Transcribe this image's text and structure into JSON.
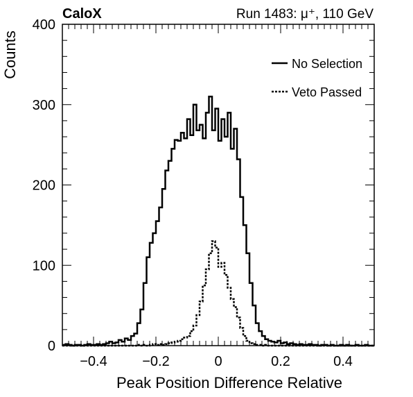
{
  "chart_data": {
    "type": "line",
    "experiment_label": "CaloX",
    "run_label": "Run 1483:   μ⁺, 110 GeV",
    "xlabel": "Peak Position Difference Relative",
    "ylabel": "Counts",
    "xlim": [
      -0.5,
      0.5
    ],
    "ylim": [
      0,
      400
    ],
    "x_ticks": [
      -0.4,
      -0.2,
      0,
      0.2,
      0.4
    ],
    "x_tick_labels": [
      "−0.4",
      "−0.2",
      "0",
      "0.2",
      "0.4"
    ],
    "y_ticks": [
      0,
      100,
      200,
      300,
      400
    ],
    "y_tick_labels": [
      "0",
      "100",
      "200",
      "300",
      "400"
    ],
    "legend_position": "top-right",
    "grid": false,
    "bin_edges": [
      -0.5,
      -0.49,
      -0.48,
      -0.47,
      -0.46,
      -0.45,
      -0.44,
      -0.43,
      -0.42,
      -0.41,
      -0.4,
      -0.39,
      -0.38,
      -0.37,
      -0.36,
      -0.35,
      -0.34,
      -0.33,
      -0.32,
      -0.31,
      -0.3,
      -0.29,
      -0.28,
      -0.27,
      -0.26,
      -0.25,
      -0.24,
      -0.23,
      -0.22,
      -0.21,
      -0.2,
      -0.19,
      -0.18,
      -0.17,
      -0.16,
      -0.15,
      -0.14,
      -0.13,
      -0.12,
      -0.11,
      -0.1,
      -0.09,
      -0.08,
      -0.07,
      -0.06,
      -0.05,
      -0.04,
      -0.03,
      -0.02,
      -0.01,
      0.0,
      0.01,
      0.02,
      0.03,
      0.04,
      0.05,
      0.06,
      0.07,
      0.08,
      0.09,
      0.1,
      0.11,
      0.12,
      0.13,
      0.14,
      0.15,
      0.16,
      0.17,
      0.18,
      0.19,
      0.2,
      0.21,
      0.22,
      0.23,
      0.24,
      0.25,
      0.26,
      0.27,
      0.28,
      0.29,
      0.3,
      0.31,
      0.32,
      0.33,
      0.34,
      0.35,
      0.36,
      0.37,
      0.38,
      0.39,
      0.4,
      0.41,
      0.42,
      0.43,
      0.44,
      0.45,
      0.46,
      0.47,
      0.48,
      0.49,
      0.5
    ],
    "series": [
      {
        "name": "No Selection",
        "style": "solid",
        "color": "#000000",
        "values": [
          1,
          2,
          1,
          0,
          1,
          1,
          0,
          1,
          2,
          1,
          1,
          2,
          1,
          2,
          3,
          5,
          3,
          4,
          7,
          5,
          9,
          7,
          12,
          15,
          28,
          45,
          78,
          110,
          128,
          140,
          155,
          172,
          195,
          218,
          230,
          245,
          256,
          255,
          265,
          258,
          282,
          262,
          300,
          268,
          275,
          258,
          290,
          310,
          268,
          295,
          255,
          282,
          260,
          290,
          245,
          270,
          232,
          185,
          150,
          115,
          78,
          50,
          28,
          18,
          12,
          8,
          6,
          5,
          4,
          6,
          3,
          4,
          2,
          3,
          2,
          1,
          2,
          1,
          1,
          2,
          1,
          1,
          0,
          1,
          1,
          0,
          1,
          0,
          0,
          1,
          0,
          1,
          0,
          0,
          1,
          0,
          0,
          1,
          0,
          0
        ]
      },
      {
        "name": "Veto Passed",
        "style": "dotted",
        "color": "#000000",
        "values": [
          0,
          0,
          0,
          0,
          0,
          0,
          0,
          0,
          0,
          0,
          0,
          0,
          0,
          0,
          0,
          0,
          0,
          0,
          0,
          0,
          0,
          0,
          0,
          0,
          1,
          0,
          1,
          0,
          1,
          2,
          1,
          2,
          1,
          2,
          3,
          4,
          5,
          6,
          8,
          10,
          12,
          18,
          25,
          38,
          55,
          75,
          95,
          115,
          130,
          122,
          98,
          103,
          88,
          72,
          58,
          48,
          35,
          22,
          12,
          6,
          3,
          2,
          1,
          1,
          0,
          1,
          0,
          0,
          0,
          0,
          0,
          0,
          0,
          0,
          0,
          0,
          0,
          0,
          0,
          0,
          0,
          0,
          0,
          0,
          0,
          0,
          0,
          0,
          0,
          0,
          0,
          0,
          0,
          0,
          0,
          0,
          0,
          0,
          0,
          0
        ]
      }
    ]
  }
}
